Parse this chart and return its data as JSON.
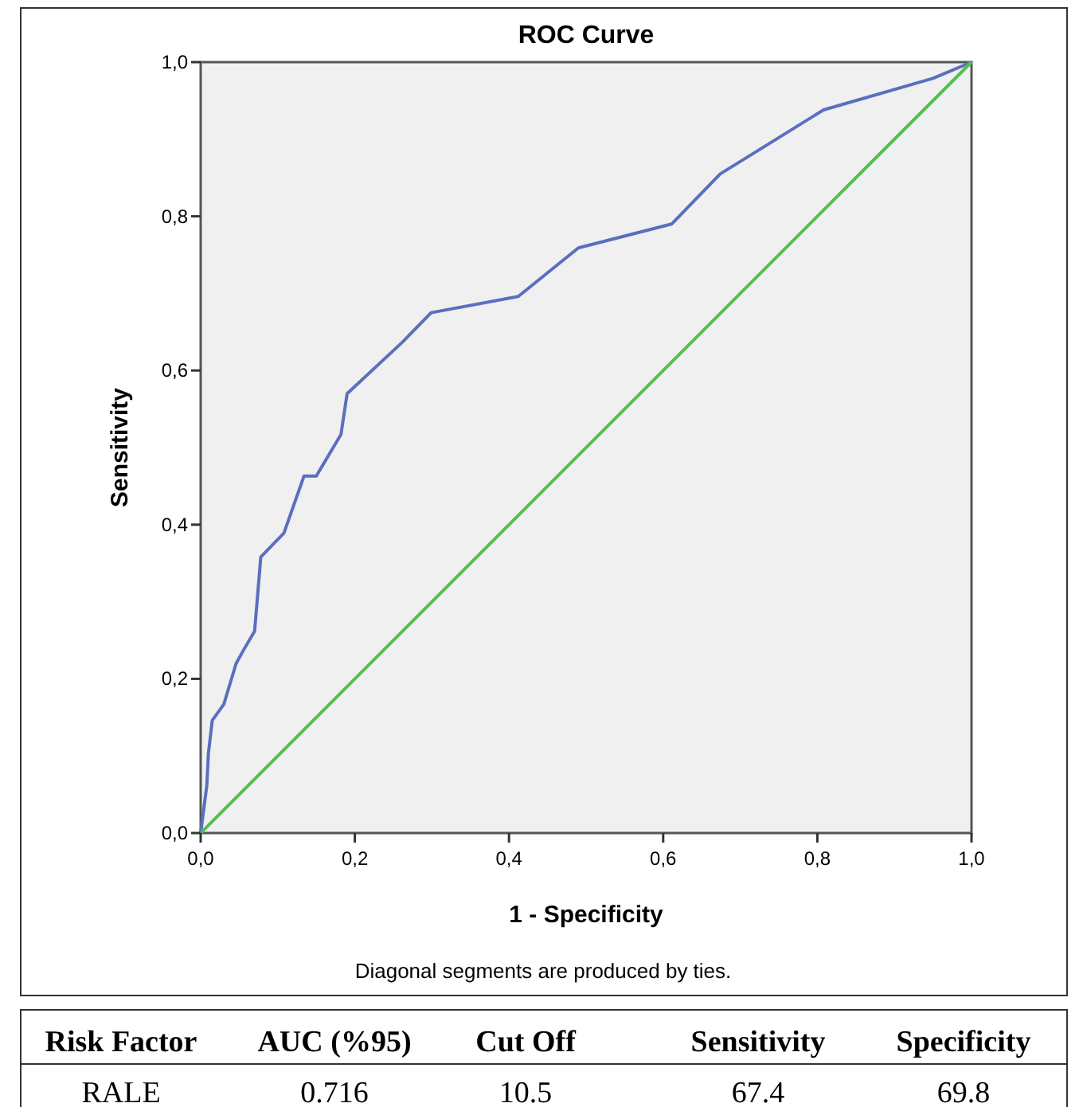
{
  "chart_data": {
    "type": "line",
    "title": "ROC Curve",
    "xlabel": "1 - Specificity",
    "ylabel": "Sensitivity",
    "xlim": [
      0,
      1
    ],
    "ylim": [
      0,
      1
    ],
    "xticks": [
      {
        "value": 0,
        "label": "0,0"
      },
      {
        "value": 0.2,
        "label": "0,2"
      },
      {
        "value": 0.4,
        "label": "0,4"
      },
      {
        "value": 0.6,
        "label": "0,6"
      },
      {
        "value": 0.8,
        "label": "0,8"
      },
      {
        "value": 1,
        "label": "1,0"
      }
    ],
    "yticks": [
      {
        "value": 0,
        "label": "0,0"
      },
      {
        "value": 0.2,
        "label": "0,2"
      },
      {
        "value": 0.4,
        "label": "0,4"
      },
      {
        "value": 0.6,
        "label": "0,6"
      },
      {
        "value": 0.8,
        "label": "0,8"
      },
      {
        "value": 1,
        "label": "1,0"
      }
    ],
    "series": [
      {
        "color": "#5b6fbf",
        "x": [
          0,
          0.008,
          0.01,
          0.015,
          0.03,
          0.046,
          0.056,
          0.07,
          0.078,
          0.108,
          0.134,
          0.15,
          0.182,
          0.19,
          0.262,
          0.299,
          0.412,
          0.49,
          0.611,
          0.674,
          0.808,
          0.95,
          1
        ],
        "values": [
          0,
          0.062,
          0.103,
          0.146,
          0.167,
          0.22,
          0.238,
          0.262,
          0.358,
          0.389,
          0.463,
          0.463,
          0.517,
          0.57,
          0.637,
          0.675,
          0.696,
          0.759,
          0.79,
          0.855,
          0.938,
          0.979,
          1
        ]
      },
      {
        "color": "#4fc152",
        "x": [
          0,
          1
        ],
        "values": [
          0,
          1
        ]
      }
    ],
    "grid": false,
    "marker": "none",
    "line_style": "solid",
    "annotations": [
      "Diagonal segments are produced by ties.",
      "Risk Factor",
      "AUC (%95)",
      "Cut Off",
      "Sensitivity",
      "Specificity",
      "RALE",
      "0.716",
      "10.5",
      "67.4",
      "69.8"
    ]
  }
}
